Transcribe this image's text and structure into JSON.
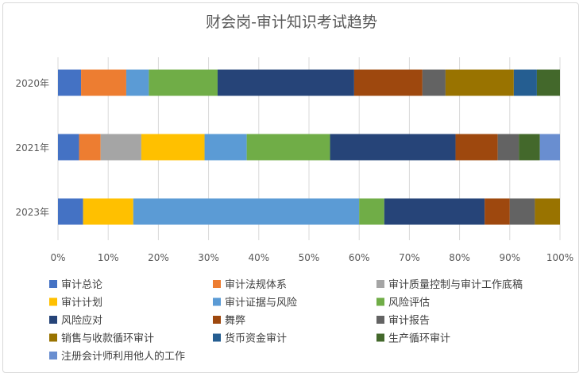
{
  "chart_data": {
    "type": "bar",
    "orientation": "horizontal",
    "stacked": "percent",
    "title": "财会岗-审计知识考试趋势",
    "categories": [
      "2020年",
      "2021年",
      "2023年"
    ],
    "xlim": [
      0,
      100
    ],
    "x_ticks": [
      "0%",
      "10%",
      "20%",
      "30%",
      "40%",
      "50%",
      "60%",
      "70%",
      "80%",
      "90%",
      "100%"
    ],
    "grid": true,
    "legend_position": "bottom",
    "series": [
      {
        "name": "审计总论",
        "color": "#4472C4",
        "values": [
          4.6,
          4.2,
          5.0
        ]
      },
      {
        "name": "审计法规体系",
        "color": "#ED7D31",
        "values": [
          9.0,
          4.3,
          0
        ]
      },
      {
        "name": "审计质量控制与审计工作底稿",
        "color": "#A5A5A5",
        "values": [
          0,
          8.1,
          0
        ]
      },
      {
        "name": "审计计划",
        "color": "#FFC000",
        "values": [
          0,
          12.6,
          10.0
        ]
      },
      {
        "name": "审计证据与风险",
        "color": "#5B9BD5",
        "values": [
          4.5,
          8.4,
          45.0
        ]
      },
      {
        "name": "风险评估",
        "color": "#70AD47",
        "values": [
          13.7,
          16.6,
          5.0
        ]
      },
      {
        "name": "风险应对",
        "color": "#264478",
        "values": [
          27.2,
          25.0,
          20.0
        ]
      },
      {
        "name": "舞弊",
        "color": "#9E480E",
        "values": [
          13.6,
          8.4,
          5.0
        ]
      },
      {
        "name": "审计报告",
        "color": "#636363",
        "values": [
          4.6,
          4.2,
          5.0
        ]
      },
      {
        "name": "销售与收款循环审计",
        "color": "#997300",
        "values": [
          13.6,
          0,
          5.0
        ]
      },
      {
        "name": "货币资金审计",
        "color": "#255E91",
        "values": [
          4.6,
          0,
          0
        ]
      },
      {
        "name": "生产循环审计",
        "color": "#43682B",
        "values": [
          4.6,
          4.2,
          0
        ]
      },
      {
        "name": "注册会计师利用他人的工作",
        "color": "#698ED0",
        "values": [
          0,
          4.0,
          0
        ]
      }
    ]
  }
}
